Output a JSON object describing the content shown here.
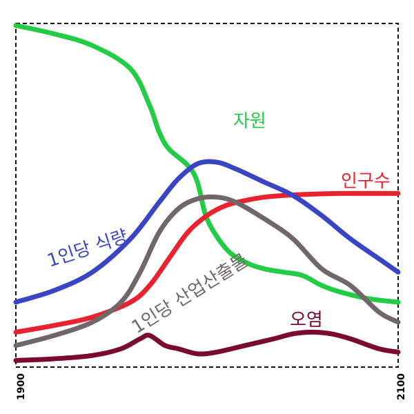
{
  "chart_data": {
    "type": "line",
    "title": "",
    "xlabel": "",
    "ylabel": "",
    "xlim": [
      1900,
      2100
    ],
    "ylim": [
      0,
      100
    ],
    "x_ticks": [
      "1900",
      "2100"
    ],
    "grid": false,
    "frame": "dashed",
    "legend": "none",
    "series": [
      {
        "name": "자원",
        "color": "#22cc44",
        "points": [
          [
            1900,
            100
          ],
          [
            1920,
            97.5
          ],
          [
            1940,
            94
          ],
          [
            1960,
            87
          ],
          [
            1970,
            76
          ],
          [
            1975,
            68
          ],
          [
            1980,
            63
          ],
          [
            1990,
            58
          ],
          [
            1995,
            53
          ],
          [
            2000,
            42
          ],
          [
            2010,
            33
          ],
          [
            2020,
            29
          ],
          [
            2030,
            27
          ],
          [
            2040,
            26
          ],
          [
            2050,
            25
          ],
          [
            2060,
            22
          ],
          [
            2070,
            20
          ],
          [
            2085,
            18
          ],
          [
            2100,
            17
          ]
        ]
      },
      {
        "name": "인구수",
        "color": "#e8232f",
        "points": [
          [
            1900,
            8
          ],
          [
            1920,
            10
          ],
          [
            1940,
            12.5
          ],
          [
            1960,
            17
          ],
          [
            1970,
            22
          ],
          [
            1980,
            30
          ],
          [
            1990,
            38
          ],
          [
            2000,
            43
          ],
          [
            2010,
            46
          ],
          [
            2020,
            47.5
          ],
          [
            2030,
            48.5
          ],
          [
            2040,
            49
          ],
          [
            2050,
            49.3
          ],
          [
            2060,
            49.5
          ],
          [
            2070,
            49.6
          ],
          [
            2085,
            49.6
          ],
          [
            2100,
            49.6
          ]
        ]
      },
      {
        "name": "1인당 식량",
        "color": "#3a45c4",
        "points": [
          [
            1900,
            17
          ],
          [
            1920,
            20.5
          ],
          [
            1940,
            26
          ],
          [
            1960,
            36
          ],
          [
            1975,
            47
          ],
          [
            1985,
            54
          ],
          [
            1995,
            58.5
          ],
          [
            2005,
            59
          ],
          [
            2015,
            57
          ],
          [
            2030,
            53
          ],
          [
            2045,
            49
          ],
          [
            2060,
            43
          ],
          [
            2075,
            36
          ],
          [
            2090,
            30
          ],
          [
            2100,
            26
          ]
        ]
      },
      {
        "name": "1인당 산업산출물",
        "color": "#716668",
        "points": [
          [
            1900,
            4
          ],
          [
            1920,
            7
          ],
          [
            1940,
            11
          ],
          [
            1955,
            17
          ],
          [
            1965,
            26
          ],
          [
            1975,
            38
          ],
          [
            1985,
            45
          ],
          [
            1995,
            48
          ],
          [
            2005,
            48.5
          ],
          [
            2015,
            47
          ],
          [
            2030,
            42
          ],
          [
            2045,
            36
          ],
          [
            2060,
            27
          ],
          [
            2075,
            22
          ],
          [
            2090,
            14
          ],
          [
            2100,
            11
          ]
        ]
      },
      {
        "name": "오염",
        "color": "#7a0a2e",
        "points": [
          [
            1900,
            -0.5
          ],
          [
            1920,
            0
          ],
          [
            1940,
            1
          ],
          [
            1955,
            3
          ],
          [
            1965,
            6
          ],
          [
            1970,
            7
          ],
          [
            1978,
            4
          ],
          [
            1985,
            3
          ],
          [
            1995,
            1.5
          ],
          [
            2005,
            2
          ],
          [
            2020,
            4
          ],
          [
            2035,
            6
          ],
          [
            2045,
            7.5
          ],
          [
            2055,
            8
          ],
          [
            2065,
            7.5
          ],
          [
            2075,
            6
          ],
          [
            2090,
            3
          ],
          [
            2100,
            2
          ]
        ]
      }
    ],
    "annotations": [
      {
        "series": "자원",
        "text": "자원"
      },
      {
        "series": "인구수",
        "text": "인구수"
      },
      {
        "series": "1인당 식량",
        "text": "1인당 식량"
      },
      {
        "series": "1인당 산업산출물",
        "text": "1인당 산업산출물"
      },
      {
        "series": "오염",
        "text": "오염"
      }
    ]
  }
}
